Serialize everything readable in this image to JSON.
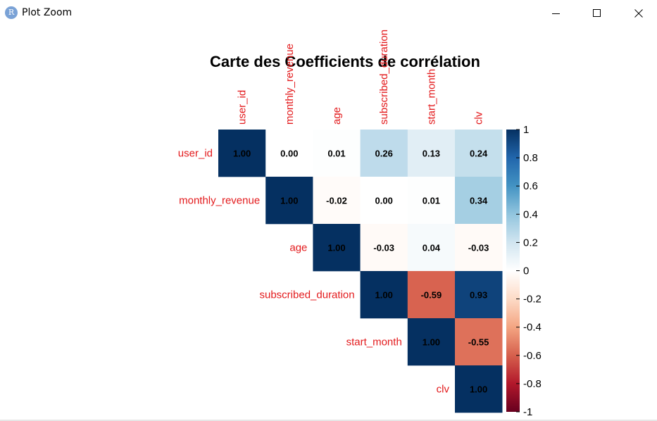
{
  "window": {
    "app_icon_glyph": "R",
    "title": "Plot Zoom",
    "controls": [
      "minimize-icon",
      "maximize-icon",
      "close-icon"
    ]
  },
  "chart_data": {
    "type": "heatmap",
    "title": "Carte des Coefficients de corrélation",
    "variables": [
      "user_id",
      "monthly_revenue",
      "age",
      "subscribed_duration",
      "start_month",
      "clv"
    ],
    "layout": "upper-triangle",
    "matrix": [
      [
        1.0,
        0.0,
        0.01,
        0.26,
        0.13,
        0.24
      ],
      [
        null,
        1.0,
        -0.02,
        0.0,
        0.01,
        0.34
      ],
      [
        null,
        null,
        1.0,
        -0.03,
        0.04,
        -0.03
      ],
      [
        null,
        null,
        null,
        1.0,
        -0.59,
        0.93
      ],
      [
        null,
        null,
        null,
        null,
        1.0,
        -0.55
      ],
      [
        null,
        null,
        null,
        null,
        null,
        1.0
      ]
    ],
    "cell_labels": [
      [
        "1.00",
        "0.00",
        "0.01",
        "0.26",
        "0.13",
        "0.24"
      ],
      [
        null,
        "1.00",
        "-0.02",
        "0.00",
        "0.01",
        "0.34"
      ],
      [
        null,
        null,
        "1.00",
        "-0.03",
        "0.04",
        "-0.03"
      ],
      [
        null,
        null,
        null,
        "1.00",
        "-0.59",
        "0.93"
      ],
      [
        null,
        null,
        null,
        null,
        "1.00",
        "-0.55"
      ],
      [
        null,
        null,
        null,
        null,
        null,
        "1.00"
      ]
    ],
    "colorbar": {
      "range": [
        -1,
        1
      ],
      "ticks": [
        "1",
        "0.8",
        "0.6",
        "0.4",
        "0.2",
        "0",
        "-0.2",
        "-0.4",
        "-0.6",
        "-0.8",
        "-1"
      ],
      "palette": [
        "#67001F",
        "#B2182B",
        "#D6604D",
        "#F4A582",
        "#FDDBC7",
        "#FFFFFF",
        "#D1E5F0",
        "#92C5DE",
        "#4393C3",
        "#2166AC",
        "#053061"
      ]
    },
    "label_color": "#e31a1c",
    "value_color": "#000000"
  }
}
